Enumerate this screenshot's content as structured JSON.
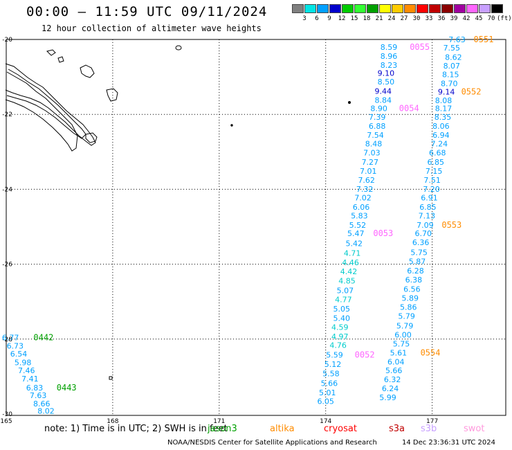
{
  "title": "00:00 – 11:59 UTC 09/11/2024",
  "subtitle": "12 hour collection of altimeter wave heights",
  "legend": {
    "colors": [
      "#808080",
      "#00e5e5",
      "#00a0ff",
      "#0000cc",
      "#00cc00",
      "#33ff33",
      "#00a000",
      "#ffff00",
      "#ffcc00",
      "#ff8c00",
      "#ff0000",
      "#c00000",
      "#8b0000",
      "#a000a0",
      "#ff66ff",
      "#c8a0ff",
      "#000000"
    ],
    "labels": [
      "3",
      "6",
      "9",
      "12",
      "15",
      "18",
      "21",
      "24",
      "27",
      "30",
      "33",
      "36",
      "39",
      "42",
      "45",
      "70",
      "(ft)"
    ]
  },
  "axes": {
    "lat_labels": [
      "-20",
      "-22",
      "-24",
      "-26",
      "-28",
      "-30"
    ],
    "lon_labels": [
      "165",
      "168",
      "171",
      "174",
      "177"
    ]
  },
  "track_points": [
    {
      "text": "7.63",
      "lat": -20.0,
      "lon": 177.7,
      "color": "#00a0ff"
    },
    {
      "text": "8.59",
      "lat": -20.2,
      "lon": 175.78,
      "color": "#00a0ff"
    },
    {
      "text": "7.55",
      "lat": -20.22,
      "lon": 177.55,
      "color": "#00a0ff"
    },
    {
      "text": "8.96",
      "lat": -20.44,
      "lon": 175.78,
      "color": "#00a0ff"
    },
    {
      "text": "8.62",
      "lat": -20.47,
      "lon": 177.6,
      "color": "#00a0ff"
    },
    {
      "text": "8.23",
      "lat": -20.68,
      "lon": 175.78,
      "color": "#00a0ff"
    },
    {
      "text": "8.07",
      "lat": -20.7,
      "lon": 177.55,
      "color": "#00a0ff"
    },
    {
      "text": "9.10",
      "lat": -20.9,
      "lon": 175.7,
      "color": "#0000cc"
    },
    {
      "text": "8.15",
      "lat": -20.93,
      "lon": 177.52,
      "color": "#00a0ff"
    },
    {
      "text": "8.50",
      "lat": -21.13,
      "lon": 175.7,
      "color": "#00a0ff"
    },
    {
      "text": "8.70",
      "lat": -21.17,
      "lon": 177.48,
      "color": "#00a0ff"
    },
    {
      "text": "9.44",
      "lat": -21.38,
      "lon": 175.62,
      "color": "#0000cc"
    },
    {
      "text": "9.14",
      "lat": -21.4,
      "lon": 177.4,
      "color": "#0000cc"
    },
    {
      "text": "8.84",
      "lat": -21.62,
      "lon": 175.62,
      "color": "#00a0ff"
    },
    {
      "text": "8.08",
      "lat": -21.63,
      "lon": 177.32,
      "color": "#00a0ff"
    },
    {
      "text": "8.90",
      "lat": -21.84,
      "lon": 175.5,
      "color": "#00a0ff"
    },
    {
      "text": "8.17",
      "lat": -21.84,
      "lon": 177.32,
      "color": "#00a0ff"
    },
    {
      "text": "7.39",
      "lat": -22.07,
      "lon": 175.45,
      "color": "#00a0ff"
    },
    {
      "text": "8.35",
      "lat": -22.07,
      "lon": 177.3,
      "color": "#00a0ff"
    },
    {
      "text": "6.88",
      "lat": -22.31,
      "lon": 175.45,
      "color": "#00a0ff"
    },
    {
      "text": "8.06",
      "lat": -22.31,
      "lon": 177.25,
      "color": "#00a0ff"
    },
    {
      "text": "7.54",
      "lat": -22.55,
      "lon": 175.4,
      "color": "#00a0ff"
    },
    {
      "text": "6.94",
      "lat": -22.55,
      "lon": 177.25,
      "color": "#00a0ff"
    },
    {
      "text": "8.48",
      "lat": -22.78,
      "lon": 175.35,
      "color": "#00a0ff"
    },
    {
      "text": "7.24",
      "lat": -22.78,
      "lon": 177.2,
      "color": "#00a0ff"
    },
    {
      "text": "7.03",
      "lat": -23.02,
      "lon": 175.3,
      "color": "#00a0ff"
    },
    {
      "text": "6.68",
      "lat": -23.02,
      "lon": 177.15,
      "color": "#00a0ff"
    },
    {
      "text": "7.27",
      "lat": -23.27,
      "lon": 175.25,
      "color": "#00a0ff"
    },
    {
      "text": "6.85",
      "lat": -23.27,
      "lon": 177.1,
      "color": "#00a0ff"
    },
    {
      "text": "7.01",
      "lat": -23.51,
      "lon": 175.2,
      "color": "#00a0ff"
    },
    {
      "text": "7.15",
      "lat": -23.51,
      "lon": 177.05,
      "color": "#00a0ff"
    },
    {
      "text": "7.62",
      "lat": -23.75,
      "lon": 175.15,
      "color": "#00a0ff"
    },
    {
      "text": "7.51",
      "lat": -23.75,
      "lon": 177.0,
      "color": "#00a0ff"
    },
    {
      "text": "7.32",
      "lat": -23.99,
      "lon": 175.1,
      "color": "#00a0ff"
    },
    {
      "text": "7.20",
      "lat": -23.99,
      "lon": 176.98,
      "color": "#00a0ff"
    },
    {
      "text": "7.02",
      "lat": -24.22,
      "lon": 175.05,
      "color": "#00a0ff"
    },
    {
      "text": "6.91",
      "lat": -24.22,
      "lon": 176.92,
      "color": "#00a0ff"
    },
    {
      "text": "6.06",
      "lat": -24.47,
      "lon": 175.0,
      "color": "#00a0ff"
    },
    {
      "text": "6.85",
      "lat": -24.47,
      "lon": 176.88,
      "color": "#00a0ff"
    },
    {
      "text": "5.83",
      "lat": -24.7,
      "lon": 174.95,
      "color": "#00a0ff"
    },
    {
      "text": "7.13",
      "lat": -24.7,
      "lon": 176.85,
      "color": "#00a0ff"
    },
    {
      "text": "5.52",
      "lat": -24.95,
      "lon": 174.9,
      "color": "#00a0ff"
    },
    {
      "text": "7.09",
      "lat": -24.95,
      "lon": 176.8,
      "color": "#00a0ff"
    },
    {
      "text": "5.47",
      "lat": -25.18,
      "lon": 174.85,
      "color": "#00a0ff"
    },
    {
      "text": "6.70",
      "lat": -25.18,
      "lon": 176.75,
      "color": "#00a0ff"
    },
    {
      "text": "6.36",
      "lat": -25.42,
      "lon": 176.68,
      "color": "#00a0ff"
    },
    {
      "text": "5.42",
      "lat": -25.44,
      "lon": 174.8,
      "color": "#00a0ff"
    },
    {
      "text": "5.75",
      "lat": -25.68,
      "lon": 176.63,
      "color": "#00a0ff"
    },
    {
      "text": "4.71",
      "lat": -25.7,
      "lon": 174.75,
      "color": "#00cccc"
    },
    {
      "text": "5.87",
      "lat": -25.92,
      "lon": 176.58,
      "color": "#00a0ff"
    },
    {
      "text": "4.46",
      "lat": -25.95,
      "lon": 174.7,
      "color": "#00cccc"
    },
    {
      "text": "6.28",
      "lat": -26.17,
      "lon": 176.53,
      "color": "#00a0ff"
    },
    {
      "text": "4.42",
      "lat": -26.19,
      "lon": 174.65,
      "color": "#00cccc"
    },
    {
      "text": "6.38",
      "lat": -26.41,
      "lon": 176.48,
      "color": "#00a0ff"
    },
    {
      "text": "4.85",
      "lat": -26.44,
      "lon": 174.6,
      "color": "#00cccc"
    },
    {
      "text": "6.56",
      "lat": -26.66,
      "lon": 176.43,
      "color": "#00a0ff"
    },
    {
      "text": "5.07",
      "lat": -26.7,
      "lon": 174.55,
      "color": "#00a0ff"
    },
    {
      "text": "5.89",
      "lat": -26.9,
      "lon": 176.38,
      "color": "#00a0ff"
    },
    {
      "text": "4.77",
      "lat": -26.94,
      "lon": 174.5,
      "color": "#00cccc"
    },
    {
      "text": "5.86",
      "lat": -27.14,
      "lon": 176.33,
      "color": "#00a0ff"
    },
    {
      "text": "5.05",
      "lat": -27.19,
      "lon": 174.45,
      "color": "#00a0ff"
    },
    {
      "text": "5.79",
      "lat": -27.38,
      "lon": 176.28,
      "color": "#00a0ff"
    },
    {
      "text": "5.40",
      "lat": -27.44,
      "lon": 174.45,
      "color": "#00a0ff"
    },
    {
      "text": "5.79",
      "lat": -27.64,
      "lon": 176.23,
      "color": "#00a0ff"
    },
    {
      "text": "4.59",
      "lat": -27.68,
      "lon": 174.4,
      "color": "#00cccc"
    },
    {
      "text": "6.00",
      "lat": -27.88,
      "lon": 176.18,
      "color": "#00a0ff"
    },
    {
      "text": "4.97",
      "lat": -27.93,
      "lon": 174.4,
      "color": "#00cccc"
    },
    {
      "text": "5.75",
      "lat": -28.12,
      "lon": 176.13,
      "color": "#00a0ff"
    },
    {
      "text": "4.76",
      "lat": -28.16,
      "lon": 174.35,
      "color": "#00cccc"
    },
    {
      "text": "5.61",
      "lat": -28.36,
      "lon": 176.05,
      "color": "#00a0ff"
    },
    {
      "text": "5.59",
      "lat": -28.42,
      "lon": 174.25,
      "color": "#00a0ff"
    },
    {
      "text": "6.04",
      "lat": -28.6,
      "lon": 175.98,
      "color": "#00a0ff"
    },
    {
      "text": "5.12",
      "lat": -28.67,
      "lon": 174.2,
      "color": "#00a0ff"
    },
    {
      "text": "5.66",
      "lat": -28.84,
      "lon": 175.92,
      "color": "#00a0ff"
    },
    {
      "text": "5.58",
      "lat": -28.92,
      "lon": 174.15,
      "color": "#00a0ff"
    },
    {
      "text": "6.32",
      "lat": -29.08,
      "lon": 175.88,
      "color": "#00a0ff"
    },
    {
      "text": "5.66",
      "lat": -29.18,
      "lon": 174.1,
      "color": "#00a0ff"
    },
    {
      "text": "6.24",
      "lat": -29.32,
      "lon": 175.82,
      "color": "#00a0ff"
    },
    {
      "text": "5.01",
      "lat": -29.43,
      "lon": 174.05,
      "color": "#00a0ff"
    },
    {
      "text": "5.99",
      "lat": -29.56,
      "lon": 175.75,
      "color": "#00a0ff"
    },
    {
      "text": "6.05",
      "lat": -29.66,
      "lon": 174.0,
      "color": "#00a0ff"
    },
    {
      "text": "6.77",
      "lat": -27.96,
      "lon": 165.12,
      "color": "#00a0ff"
    },
    {
      "text": "6.73",
      "lat": -28.18,
      "lon": 165.25,
      "color": "#00a0ff"
    },
    {
      "text": "6.54",
      "lat": -28.39,
      "lon": 165.35,
      "color": "#00a0ff"
    },
    {
      "text": "5.98",
      "lat": -28.62,
      "lon": 165.47,
      "color": "#00a0ff"
    },
    {
      "text": "7.46",
      "lat": -28.84,
      "lon": 165.57,
      "color": "#00a0ff"
    },
    {
      "text": "7.41",
      "lat": -29.06,
      "lon": 165.67,
      "color": "#00a0ff"
    },
    {
      "text": "6.83",
      "lat": -29.3,
      "lon": 165.8,
      "color": "#00a0ff"
    },
    {
      "text": "7.63",
      "lat": -29.5,
      "lon": 165.9,
      "color": "#00a0ff"
    },
    {
      "text": "8.66",
      "lat": -29.72,
      "lon": 166.0,
      "color": "#00a0ff"
    },
    {
      "text": "8.02",
      "lat": -29.92,
      "lon": 166.12,
      "color": "#00a0ff"
    }
  ],
  "pass_labels": [
    {
      "text": "0551",
      "lat": -20.0,
      "lon": 178.45,
      "color": "#ff8c00"
    },
    {
      "text": "0055",
      "lat": -20.2,
      "lon": 176.65,
      "color": "#ff66ff"
    },
    {
      "text": "0552",
      "lat": -21.4,
      "lon": 178.1,
      "color": "#ff8c00"
    },
    {
      "text": "0054",
      "lat": -21.84,
      "lon": 176.35,
      "color": "#ff66ff"
    },
    {
      "text": "0553",
      "lat": -24.95,
      "lon": 177.55,
      "color": "#ff8c00"
    },
    {
      "text": "0053",
      "lat": -25.18,
      "lon": 175.62,
      "color": "#ff66ff"
    },
    {
      "text": "0554",
      "lat": -28.36,
      "lon": 176.95,
      "color": "#ff8c00"
    },
    {
      "text": "0052",
      "lat": -28.42,
      "lon": 175.1,
      "color": "#ff66ff"
    },
    {
      "text": "0442",
      "lat": -27.96,
      "lon": 166.05,
      "color": "#00a000"
    },
    {
      "text": "0443",
      "lat": -29.3,
      "lon": 166.7,
      "color": "#00a000"
    }
  ],
  "note": "note:  1) Time is in UTC;  2) SWH is in feet",
  "satellites": [
    {
      "name": "jason3",
      "color": "#00a000"
    },
    {
      "name": "altika",
      "color": "#ff8c00"
    },
    {
      "name": "cryosat",
      "color": "#ff0000"
    },
    {
      "name": "s3a",
      "color": "#c00000"
    },
    {
      "name": "s3b",
      "color": "#c8a0ff"
    },
    {
      "name": "swot",
      "color": "#ff99dd"
    }
  ],
  "footer": "NOAA/NESDIS Center for Satellite Applications and Research",
  "timestamp": "14 Dec 23:36:31 UTC 2024"
}
